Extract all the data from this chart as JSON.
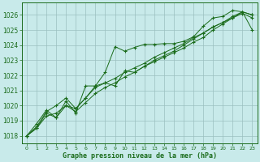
{
  "title": "Graphe pression niveau de la mer (hPa)",
  "bg_color": "#c8eaea",
  "grid_color": "#9bbfbf",
  "line_color": "#1a6b1a",
  "marker_color": "#1a6b1a",
  "xlim": [
    -0.5,
    23.5
  ],
  "ylim": [
    1017.5,
    1026.8
  ],
  "yticks": [
    1018,
    1019,
    1020,
    1021,
    1022,
    1023,
    1024,
    1025,
    1026
  ],
  "xticks": [
    0,
    1,
    2,
    3,
    4,
    5,
    6,
    7,
    8,
    9,
    10,
    11,
    12,
    13,
    14,
    15,
    16,
    17,
    18,
    19,
    20,
    21,
    22,
    23
  ],
  "series": [
    [
      1018.0,
      1018.5,
      1019.5,
      1019.2,
      1020.3,
      1019.5,
      1021.3,
      1021.3,
      1022.2,
      1023.9,
      1023.6,
      1023.85,
      1024.05,
      1024.05,
      1024.1,
      1024.1,
      1024.25,
      1024.55,
      1025.25,
      1025.8,
      1025.9,
      1026.3,
      1026.2,
      1026.0
    ],
    [
      1018.0,
      1018.8,
      1019.7,
      1019.2,
      1020.0,
      1019.8,
      1020.5,
      1021.3,
      1021.5,
      1021.3,
      1022.3,
      1022.2,
      1022.6,
      1022.9,
      1023.2,
      1023.5,
      1023.8,
      1024.2,
      1024.5,
      1025.0,
      1025.4,
      1025.8,
      1026.2,
      1025.0
    ],
    [
      1018.0,
      1018.6,
      1019.6,
      1020.0,
      1020.5,
      1019.8,
      1020.5,
      1021.2,
      1021.5,
      1021.8,
      1022.2,
      1022.5,
      1022.8,
      1023.2,
      1023.5,
      1023.8,
      1024.1,
      1024.5,
      1024.8,
      1025.2,
      1025.5,
      1025.9,
      1026.2,
      1026.0
    ],
    [
      1018.0,
      1018.5,
      1019.3,
      1019.5,
      1020.0,
      1019.6,
      1020.2,
      1020.8,
      1021.2,
      1021.5,
      1021.9,
      1022.2,
      1022.6,
      1023.0,
      1023.3,
      1023.6,
      1024.0,
      1024.4,
      1024.8,
      1025.2,
      1025.5,
      1025.8,
      1026.1,
      1025.8
    ]
  ]
}
